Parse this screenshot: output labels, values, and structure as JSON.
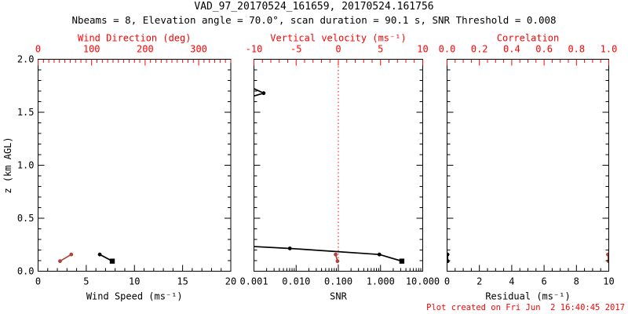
{
  "title": "VAD_97_20170524_161659, 20170524.161756",
  "subtitle": "Nbeams = 8, Elevation angle = 70.0°, scan duration = 90.1 s, SNR Threshold = 0.008",
  "footer_note": "Plot created on Fri Jun  2 16:40:45 2017",
  "colors": {
    "ink": "#000000",
    "axis_accent": "#ff0000",
    "data_accent": "#b0423a",
    "background": "#ffffff"
  },
  "chart_data": [
    {
      "type": "line",
      "name": "wind-panel",
      "xlabel": "Wind Speed (ms⁻¹)",
      "xlabel_top": "Wind Direction (deg)",
      "ylabel": "z (km AGL)",
      "show_ylabels": true,
      "bottom_axis": {
        "range": [
          0,
          20
        ],
        "log": false,
        "majors": [
          0,
          5,
          10,
          15,
          20
        ],
        "labels": [
          "0",
          "5",
          "10",
          "15",
          "20"
        ],
        "minor_step": 1
      },
      "top_axis": {
        "range": [
          0,
          360
        ],
        "log": false,
        "majors": [
          0,
          100,
          200,
          300
        ],
        "labels": [
          "0",
          "100",
          "200",
          "300"
        ],
        "minor_step": 10
      },
      "y_axis": {
        "range": [
          0,
          2
        ],
        "majors": [
          0,
          0.5,
          1,
          1.5,
          2
        ],
        "labels": [
          "0.0",
          "0.5",
          "1.0",
          "1.5",
          "2.0"
        ],
        "minor_step": 0.1
      },
      "series": [
        {
          "name": "wind_speed",
          "axis": "bottom",
          "color": "ink",
          "points": [
            [
              6.4,
              0.158
            ],
            [
              7.7,
              0.095,
              "sq"
            ]
          ]
        },
        {
          "name": "wind_direction",
          "axis": "top",
          "color": "data_accent",
          "points": [
            [
              62,
              0.158
            ],
            [
              41,
              0.095
            ]
          ]
        }
      ]
    },
    {
      "type": "line",
      "name": "snr-panel",
      "xlabel": "SNR",
      "xlabel_top": "Vertical velocity (ms⁻¹)",
      "show_ylabels": false,
      "bottom_axis": {
        "range": [
          0.001,
          10
        ],
        "log": true,
        "majors": [
          0.001,
          0.01,
          0.1,
          1,
          10
        ],
        "labels": [
          "0.001",
          "0.010",
          "0.100",
          "1.000",
          "10.000"
        ]
      },
      "top_axis": {
        "range": [
          -10,
          10
        ],
        "log": false,
        "majors": [
          -10,
          -5,
          0,
          5,
          10
        ],
        "labels": [
          "-10",
          "-5",
          "0",
          "5",
          "10"
        ],
        "minor_step": 1
      },
      "y_axis": {
        "range": [
          0,
          2
        ],
        "majors": [
          0,
          0.5,
          1,
          1.5,
          2
        ],
        "labels": [
          "0.0",
          "0.5",
          "1.0",
          "1.5",
          "2.0"
        ],
        "minor_step": 0.1
      },
      "refline": {
        "axis": "top",
        "value": 0,
        "color": "axis_accent",
        "style": "dotted"
      },
      "series": [
        {
          "name": "snr_profile",
          "axis": "bottom",
          "color": "ink",
          "points": [
            [
              0.0008,
              1.74
            ],
            [
              0.0017,
              1.68
            ],
            [
              0.0005,
              1.62
            ],
            [
              0.0005,
              0.239
            ],
            [
              0.0071,
              0.215
            ],
            [
              0.94,
              0.158
            ],
            [
              3.2,
              0.095,
              "sq"
            ]
          ]
        },
        {
          "name": "vertical_velocity",
          "axis": "top",
          "color": "data_accent",
          "points": [
            [
              -0.32,
              0.158
            ],
            [
              -0.1,
              0.095
            ]
          ]
        }
      ]
    },
    {
      "type": "line",
      "name": "residual-panel",
      "xlabel": "Residual (ms⁻¹)",
      "xlabel_top": "Correlation",
      "show_ylabels": false,
      "bottom_axis": {
        "range": [
          0,
          10
        ],
        "log": false,
        "majors": [
          0,
          2,
          4,
          6,
          8,
          10
        ],
        "labels": [
          "0",
          "2",
          "4",
          "6",
          "8",
          "10"
        ],
        "minor_step": 0.5
      },
      "top_axis": {
        "range": [
          0,
          1
        ],
        "log": false,
        "majors": [
          0,
          0.2,
          0.4,
          0.6,
          0.8,
          1
        ],
        "labels": [
          "0.0",
          "0.2",
          "0.4",
          "0.6",
          "0.8",
          "1.0"
        ],
        "minor_step": 0.05
      },
      "y_axis": {
        "range": [
          0,
          2
        ],
        "majors": [
          0,
          0.5,
          1,
          1.5,
          2
        ],
        "labels": [
          "0.0",
          "0.5",
          "1.0",
          "1.5",
          "2.0"
        ],
        "minor_step": 0.1
      },
      "series": [
        {
          "name": "residual",
          "axis": "bottom",
          "color": "ink",
          "points": [
            [
              0.03,
              0.158
            ],
            [
              0.04,
              0.095
            ]
          ]
        },
        {
          "name": "correlation",
          "axis": "top",
          "color": "data_accent",
          "points": [
            [
              0.995,
              0.158
            ],
            [
              0.998,
              0.095
            ]
          ]
        }
      ]
    }
  ]
}
